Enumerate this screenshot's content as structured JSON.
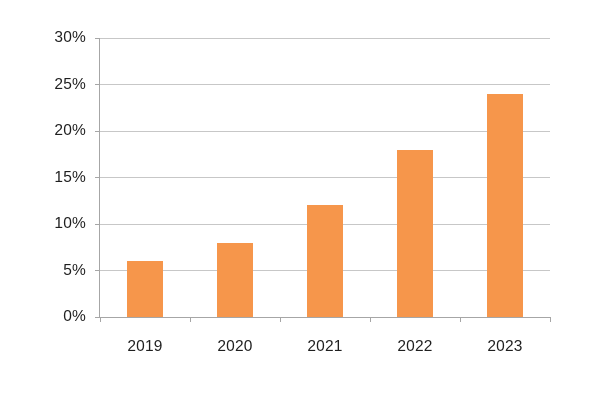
{
  "chart_data": {
    "type": "bar",
    "title": "",
    "xlabel": "",
    "ylabel": "",
    "categories": [
      "2019",
      "2020",
      "2021",
      "2022",
      "2023"
    ],
    "values": [
      6,
      8,
      12,
      18,
      24
    ],
    "value_unit": "%",
    "ylim": [
      0,
      30
    ],
    "ytick_step": 5,
    "ytick_labels": [
      "0%",
      "5%",
      "10%",
      "15%",
      "20%",
      "25%",
      "30%"
    ],
    "grid": true,
    "legend": "none",
    "bar_color": "#F6964B",
    "gridline_color": "#C7C7C7",
    "axis_color": "#A6A6A6",
    "label_color": "#1F1F1F",
    "background_color": "#FFFFFF"
  }
}
